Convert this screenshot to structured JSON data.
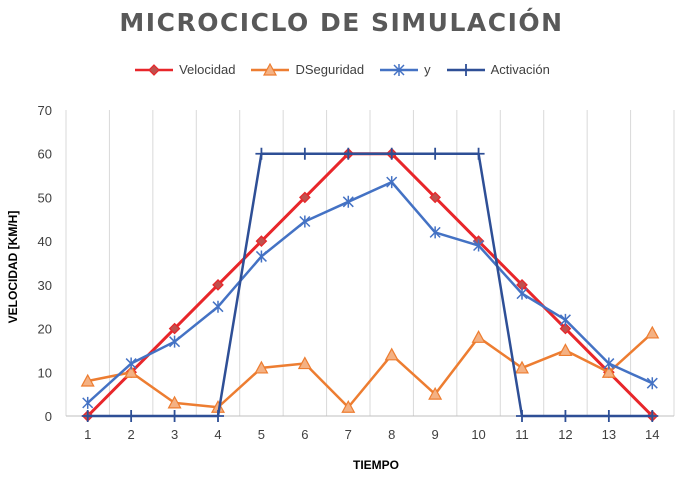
{
  "chart_data": {
    "type": "line",
    "title": "MICROCICLO DE SIMULACIÓN",
    "xlabel": "TIEMPO",
    "ylabel": "VELOCIDAD [KM/H]",
    "x": [
      1,
      2,
      3,
      4,
      5,
      6,
      7,
      8,
      9,
      10,
      11,
      12,
      13,
      14
    ],
    "ylim": [
      0,
      70
    ],
    "yticks": [
      0,
      10,
      20,
      30,
      40,
      50,
      60,
      70
    ],
    "grid": "vertical",
    "legend_position": "top",
    "series": [
      {
        "name": "Velocidad",
        "color": "#e8262a",
        "marker": "diamond",
        "values": [
          0,
          10,
          20,
          30,
          40,
          50,
          60,
          60,
          50,
          40,
          30,
          20,
          10,
          0
        ]
      },
      {
        "name": "DSeguridad",
        "color": "#ed7d31",
        "marker": "triangle",
        "values": [
          8,
          10,
          3,
          2,
          11,
          12,
          2,
          14,
          5,
          18,
          11,
          15,
          10,
          19
        ]
      },
      {
        "name": "y",
        "color": "#4472c4",
        "marker": "star",
        "values": [
          3,
          12,
          17,
          25,
          36.5,
          44.5,
          49,
          53.5,
          42,
          39,
          28,
          22,
          12,
          7.5
        ]
      },
      {
        "name": "Activación",
        "color": "#2e4f96",
        "marker": "plus",
        "values": [
          0,
          0,
          0,
          0,
          60,
          60,
          60,
          60,
          60,
          60,
          0,
          0,
          0,
          0
        ]
      }
    ]
  }
}
